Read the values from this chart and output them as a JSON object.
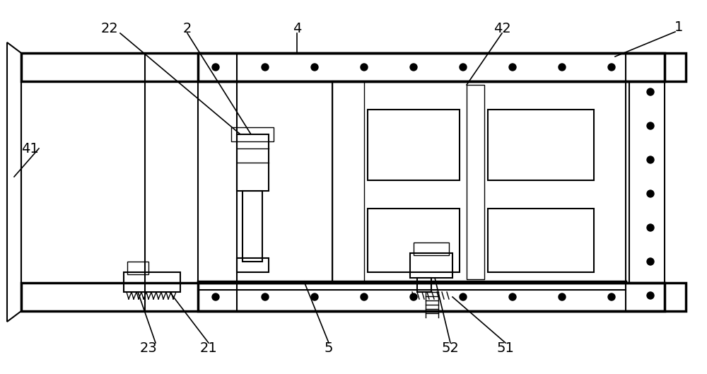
{
  "bg_color": "#ffffff",
  "line_color": "#000000",
  "lw_thin": 1.0,
  "lw_med": 1.5,
  "lw_thick": 2.5,
  "fig_width": 10.0,
  "fig_height": 5.29,
  "dpi": 100
}
